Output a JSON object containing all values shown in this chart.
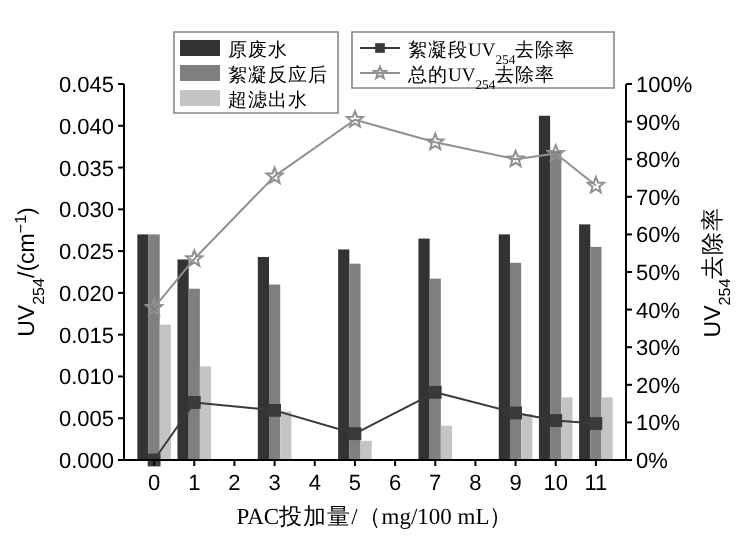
{
  "chart_data": {
    "type": "bar",
    "xlabel": "PAC投加量/（mg/100 mL）",
    "ylabel": "UV$_{254}$/(cm$^{−1}$)",
    "y2label": "UV$_{254}$去除率",
    "categories": [
      "0",
      "1",
      "2",
      "3",
      "4",
      "5",
      "6",
      "7",
      "8",
      "9",
      "10",
      "11"
    ],
    "ylim": [
      0,
      0.045
    ],
    "yticks": [
      {
        "value": 0,
        "label": "0.000"
      },
      {
        "value": 0.005,
        "label": "0.005"
      },
      {
        "value": 0.01,
        "label": "0.010"
      },
      {
        "value": 0.015,
        "label": "0.015"
      },
      {
        "value": 0.02,
        "label": "0.020"
      },
      {
        "value": 0.025,
        "label": "0.025"
      },
      {
        "value": 0.03,
        "label": "0.030"
      },
      {
        "value": 0.035,
        "label": "0.035"
      },
      {
        "value": 0.04,
        "label": "0.040"
      },
      {
        "value": 0.045,
        "label": "0.045"
      }
    ],
    "y2lim": [
      0,
      100
    ],
    "y2ticks": [
      {
        "value": 0,
        "label": "0%"
      },
      {
        "value": 10,
        "label": "10%"
      },
      {
        "value": 20,
        "label": "20%"
      },
      {
        "value": 30,
        "label": "30%"
      },
      {
        "value": 40,
        "label": "40%"
      },
      {
        "value": 50,
        "label": "50%"
      },
      {
        "value": 60,
        "label": "60%"
      },
      {
        "value": 70,
        "label": "70%"
      },
      {
        "value": 80,
        "label": "80%"
      },
      {
        "value": 90,
        "label": "90%"
      },
      {
        "value": 100,
        "label": "100%"
      }
    ],
    "legend": "top",
    "grid": false,
    "series": [
      {
        "name": "原废水",
        "color": "#333333",
        "values": [
          0.027,
          0.024,
          null,
          0.0243,
          null,
          0.0252,
          null,
          0.0265,
          null,
          0.027,
          0.0412,
          0.0282
        ]
      },
      {
        "name": "絮凝反应后",
        "color": "#7f7f7f",
        "values": [
          0.027,
          0.0205,
          null,
          0.021,
          null,
          0.0235,
          null,
          0.0217,
          null,
          0.0236,
          0.037,
          0.0255
        ]
      },
      {
        "name": "超滤出水",
        "color": "#c4c4c4",
        "values": [
          0.0162,
          0.0112,
          null,
          0.0058,
          null,
          0.0023,
          null,
          0.0041,
          null,
          0.0055,
          0.0075,
          0.0075
        ]
      },
      {
        "name": "絮凝段UV$_{254}$去除率",
        "type": "line",
        "axis": "y2",
        "marker": "square",
        "line_style": "solid",
        "color": "#3a3a3a",
        "values": [
          0,
          15.3,
          null,
          13.2,
          null,
          7,
          null,
          18,
          null,
          12.5,
          10.5,
          9.7
        ]
      },
      {
        "name": "总的UV$_{254}$去除率",
        "type": "line",
        "axis": "y2",
        "marker": "star",
        "line_style": "solid",
        "color": "#909090",
        "values": [
          40.5,
          53.5,
          null,
          75.5,
          null,
          90.5,
          null,
          84.5,
          null,
          80,
          81.5,
          73
        ]
      }
    ]
  }
}
